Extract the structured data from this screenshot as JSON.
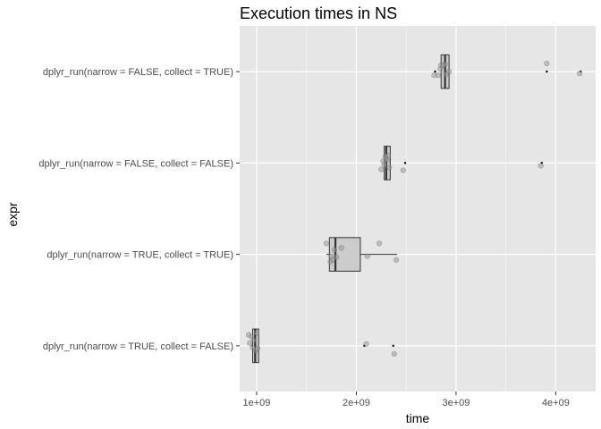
{
  "chart_data": {
    "type": "boxplot",
    "orientation": "horizontal",
    "title": "Execution times in NS",
    "xlabel": "time",
    "ylabel": "expr",
    "xlim": [
      830000000,
      4400000000
    ],
    "x_ticks": [
      1000000000,
      2000000000,
      3000000000,
      4000000000
    ],
    "x_tick_labels": [
      "1e+09",
      "2e+09",
      "3e+09",
      "4e+09"
    ],
    "grid": true,
    "colors": {
      "panel": "#e6e6e6",
      "grid_major": "#ffffff",
      "box_fill": "#cccccc",
      "box_line": "#333333",
      "point": "#999999"
    },
    "categories": [
      "dplyr_run(narrow = TRUE, collect = FALSE)",
      "dplyr_run(narrow = TRUE, collect = TRUE)",
      "dplyr_run(narrow = FALSE, collect = FALSE)",
      "dplyr_run(narrow = FALSE, collect = TRUE)"
    ],
    "boxes": [
      {
        "min": 940000000,
        "q1": 960000000,
        "median": 985000000,
        "q3": 1020000000,
        "max": 1020000000,
        "outliers": [
          2080000000,
          2370000000
        ],
        "points": [
          [
            920000000,
            0.12
          ],
          [
            950000000,
            0.1
          ],
          [
            1000000000,
            0.14
          ],
          [
            930000000,
            0.03
          ],
          [
            960000000,
            -0.02
          ],
          [
            990000000,
            -0.05
          ],
          [
            970000000,
            0.06
          ],
          [
            1010000000,
            -0.03
          ],
          [
            2100000000,
            0.02
          ],
          [
            2380000000,
            -0.09
          ]
        ]
      },
      {
        "min": 1700000000,
        "q1": 1730000000,
        "median": 1790000000,
        "q3": 2040000000,
        "max": 2410000000,
        "outliers": [],
        "points": [
          [
            1700000000,
            0.12
          ],
          [
            1750000000,
            -0.02
          ],
          [
            1780000000,
            0.05
          ],
          [
            1850000000,
            0.07
          ],
          [
            1760000000,
            -0.06
          ],
          [
            2110000000,
            -0.02
          ],
          [
            2230000000,
            0.12
          ],
          [
            2400000000,
            -0.06
          ],
          [
            1800000000,
            -0.03
          ],
          [
            1740000000,
            -0.08
          ]
        ]
      },
      {
        "min": 2280000000,
        "q1": 2280000000,
        "median": 2300000000,
        "q3": 2340000000,
        "max": 2340000000,
        "outliers": [
          2490000000,
          3860000000
        ],
        "points": [
          [
            2250000000,
            -0.07
          ],
          [
            2270000000,
            0.02
          ],
          [
            2290000000,
            0.07
          ],
          [
            2310000000,
            0.03
          ],
          [
            2330000000,
            -0.05
          ],
          [
            2300000000,
            0.05
          ],
          [
            2280000000,
            -0.02
          ],
          [
            2320000000,
            0.08
          ],
          [
            2470000000,
            -0.08
          ],
          [
            3850000000,
            -0.03
          ]
        ]
      },
      {
        "min": 2850000000,
        "q1": 2850000000,
        "median": 2890000000,
        "q3": 2930000000,
        "max": 2930000000,
        "outliers": [
          2790000000,
          3910000000,
          4250000000
        ],
        "points": [
          [
            2820000000,
            -0.04
          ],
          [
            2850000000,
            0.07
          ],
          [
            2890000000,
            0.08
          ],
          [
            2930000000,
            0.0
          ],
          [
            2780000000,
            -0.04
          ],
          [
            2870000000,
            0.07
          ],
          [
            2900000000,
            -0.03
          ],
          [
            3910000000,
            0.09
          ],
          [
            4240000000,
            -0.02
          ],
          [
            2840000000,
            0.03
          ]
        ]
      }
    ]
  }
}
